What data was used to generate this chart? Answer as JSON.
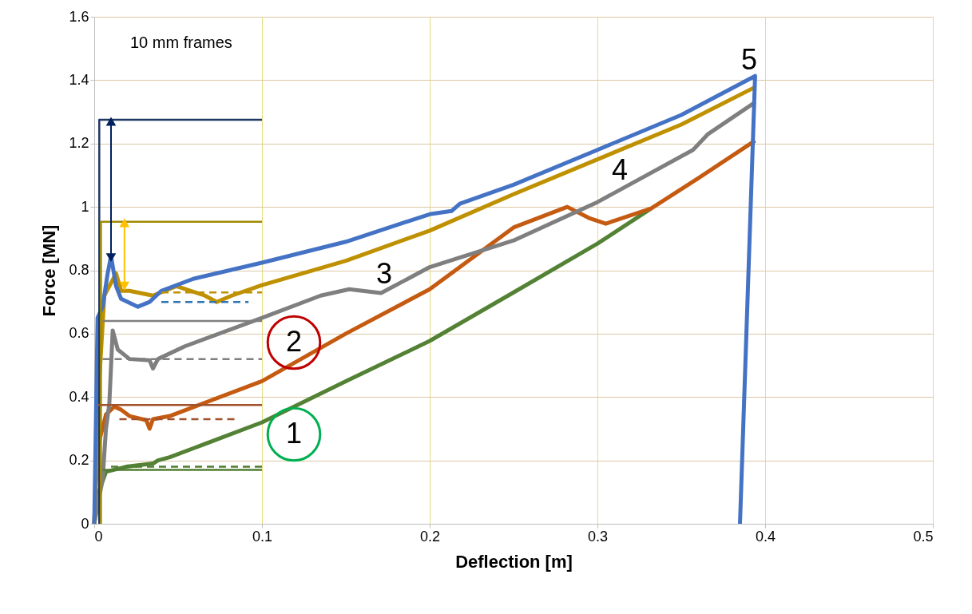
{
  "chart_data": {
    "type": "line",
    "xlabel": "Deflection  [m]",
    "ylabel": "Force [MN]",
    "xlim": [
      0,
      0.5
    ],
    "xticks": [
      0,
      0.1,
      0.2,
      0.3,
      0.4,
      0.5
    ],
    "ylim": [
      0,
      1.6
    ],
    "yticks": [
      0,
      0.2,
      0.4,
      0.6,
      0.8,
      1,
      1.2,
      1.4,
      1.6
    ],
    "grid": true,
    "line_style": "solid",
    "annotations": [
      "10 mm frames",
      "1",
      "2",
      "3",
      "4",
      "5"
    ],
    "series": [
      {
        "color": "#548235",
        "x": [
          0,
          0.002,
          0.007,
          0.019,
          0.035,
          0.038,
          0.045,
          0.06,
          0.1,
          0.15,
          0.2,
          0.25,
          0.3,
          0.332
        ],
        "values": [
          0,
          0.09,
          0.164,
          0.18,
          0.19,
          0.2,
          0.21,
          0.24,
          0.32,
          0.45,
          0.577,
          0.73,
          0.884,
          0.995
        ]
      },
      {
        "color": "#c55a11",
        "x": [
          0,
          0.002,
          0.007,
          0.012,
          0.016,
          0.021,
          0.031,
          0.033,
          0.035,
          0.045,
          0.1,
          0.15,
          0.2,
          0.25,
          0.282,
          0.295,
          0.305,
          0.332,
          0.36,
          0.394
        ],
        "values": [
          0,
          0.24,
          0.345,
          0.37,
          0.36,
          0.34,
          0.327,
          0.3,
          0.33,
          0.34,
          0.45,
          0.6,
          0.74,
          0.935,
          1.0,
          0.965,
          0.947,
          0.995,
          1.09,
          1.209
        ]
      },
      {
        "color": "#7f7f7f",
        "x": [
          0,
          0.005,
          0.007,
          0.009,
          0.011,
          0.014,
          0.021,
          0.033,
          0.035,
          0.038,
          0.054,
          0.1,
          0.135,
          0.152,
          0.171,
          0.2,
          0.25,
          0.3,
          0.357,
          0.366,
          0.394
        ],
        "values": [
          0,
          0.14,
          0.3,
          0.38,
          0.61,
          0.55,
          0.52,
          0.516,
          0.49,
          0.52,
          0.56,
          0.65,
          0.72,
          0.74,
          0.728,
          0.81,
          0.894,
          1.015,
          1.18,
          1.23,
          1.33
        ]
      },
      {
        "color": "#bf9000",
        "x": [
          0,
          0.003,
          0.006,
          0.009,
          0.013,
          0.016,
          0.021,
          0.035,
          0.049,
          0.066,
          0.073,
          0.082,
          0.1,
          0.15,
          0.2,
          0.25,
          0.3,
          0.35,
          0.394
        ],
        "values": [
          0,
          0.45,
          0.72,
          0.75,
          0.79,
          0.735,
          0.735,
          0.72,
          0.75,
          0.72,
          0.7,
          0.72,
          0.753,
          0.83,
          0.925,
          1.04,
          1.15,
          1.26,
          1.378
        ]
      },
      {
        "color": "#4472c4",
        "x": [
          0,
          0.002,
          0.005,
          0.008,
          0.01,
          0.013,
          0.016,
          0.026,
          0.033,
          0.04,
          0.059,
          0.1,
          0.15,
          0.2,
          0.213,
          0.218,
          0.25,
          0.3,
          0.35,
          0.394,
          0.385
        ],
        "values": [
          0,
          0.65,
          0.685,
          0.79,
          0.845,
          0.75,
          0.71,
          0.685,
          0.7,
          0.735,
          0.773,
          0.824,
          0.89,
          0.977,
          0.987,
          1.01,
          1.07,
          1.18,
          1.29,
          1.413,
          0
        ]
      },
      {
        "color": "#1f3864",
        "x": [
          0.003,
          0.003,
          0.1
        ],
        "values": [
          0,
          1.275,
          1.275
        ]
      },
      {
        "color": "#a08a00",
        "x": [
          0.004,
          0.004,
          0.1
        ],
        "values": [
          0,
          0.953,
          0.953
        ]
      },
      {
        "color": "#7f7f7f",
        "x": [
          0.005,
          0.1
        ],
        "values": [
          0.64,
          0.64
        ]
      },
      {
        "color": "#7f7f7f",
        "x": [
          0.005,
          0.1
        ],
        "values": [
          0.52,
          0.52
        ],
        "line_style": "dashed"
      },
      {
        "color": "#a0522d",
        "x": [
          0.002,
          0.1
        ],
        "values": [
          0.375,
          0.375
        ]
      },
      {
        "color": "#a0522d",
        "x": [
          0.015,
          0.085
        ],
        "values": [
          0.33,
          0.33
        ],
        "line_style": "dashed"
      },
      {
        "color": "#507e32",
        "x": [
          0.005,
          0.1
        ],
        "values": [
          0.17,
          0.17
        ]
      },
      {
        "color": "#507e32",
        "x": [
          0.01,
          0.1
        ],
        "values": [
          0.18,
          0.18
        ],
        "line_style": "dashed"
      },
      {
        "color": "#2e75b6",
        "x": [
          0.04,
          0.092
        ],
        "values": [
          0.7,
          0.7
        ],
        "line_style": "dashed"
      },
      {
        "color": "#bf9000",
        "x": [
          0.04,
          0.1
        ],
        "values": [
          0.73,
          0.73
        ],
        "line_style": "dashed"
      },
      {
        "color": "#002060",
        "x": [
          0.01,
          0.01
        ],
        "values": [
          0.84,
          1.27
        ],
        "marker": "triangle"
      },
      {
        "color": "#ffc000",
        "x": [
          0.018,
          0.018
        ],
        "values": [
          0.75,
          0.95
        ],
        "marker": "triangle"
      }
    ]
  }
}
